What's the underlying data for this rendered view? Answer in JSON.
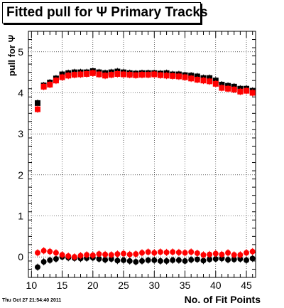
{
  "title": "Fitted pull for Ψ  Primary Tracks",
  "timestamp": "Thu Oct 27 21:54:40 2011",
  "chart_data": {
    "type": "scatter",
    "title": "Fitted pull for Ψ  Primary Tracks",
    "xlabel": "No. of Fit Points",
    "ylabel": "pull for Ψ",
    "xlim": [
      9.5,
      46.5
    ],
    "ylim": [
      -0.5,
      5.5
    ],
    "grid": true,
    "x_ticks": [
      10,
      15,
      20,
      25,
      30,
      35,
      40,
      45
    ],
    "y_ticks": [
      0,
      1,
      2,
      3,
      4,
      5
    ],
    "colors": {
      "black_series": "#000000",
      "red_series": "#ff0000"
    },
    "series": [
      {
        "marker": "square",
        "color": "#000000",
        "x": [
          11,
          12,
          13,
          14,
          15,
          16,
          17,
          18,
          19,
          20,
          21,
          22,
          23,
          24,
          25,
          26,
          27,
          28,
          29,
          30,
          31,
          32,
          33,
          34,
          35,
          36,
          37,
          38,
          39,
          40,
          41,
          42,
          43,
          44,
          45,
          46
        ],
        "y": [
          3.75,
          4.18,
          4.25,
          4.35,
          4.45,
          4.48,
          4.5,
          4.5,
          4.5,
          4.53,
          4.5,
          4.48,
          4.5,
          4.52,
          4.5,
          4.48,
          4.47,
          4.48,
          4.48,
          4.48,
          4.47,
          4.48,
          4.45,
          4.45,
          4.43,
          4.42,
          4.4,
          4.36,
          4.36,
          4.3,
          4.2,
          4.17,
          4.15,
          4.1,
          4.1,
          4.05
        ]
      },
      {
        "marker": "square",
        "color": "#ff0000",
        "x": [
          11,
          12,
          13,
          14,
          15,
          16,
          17,
          18,
          19,
          20,
          21,
          22,
          23,
          24,
          25,
          26,
          27,
          28,
          29,
          30,
          31,
          32,
          33,
          34,
          35,
          36,
          37,
          38,
          39,
          40,
          41,
          42,
          43,
          44,
          45,
          46
        ],
        "y": [
          3.6,
          4.15,
          4.2,
          4.3,
          4.38,
          4.42,
          4.44,
          4.45,
          4.46,
          4.48,
          4.45,
          4.42,
          4.44,
          4.46,
          4.45,
          4.44,
          4.43,
          4.44,
          4.44,
          4.45,
          4.43,
          4.42,
          4.41,
          4.4,
          4.38,
          4.35,
          4.32,
          4.3,
          4.28,
          4.22,
          4.12,
          4.1,
          4.08,
          4.03,
          4.05,
          4.0
        ]
      },
      {
        "marker": "circle",
        "color": "#000000",
        "x": [
          11,
          12,
          13,
          14,
          15,
          16,
          17,
          18,
          19,
          20,
          21,
          22,
          23,
          24,
          25,
          26,
          27,
          28,
          29,
          30,
          31,
          32,
          33,
          34,
          35,
          36,
          37,
          38,
          39,
          40,
          41,
          42,
          43,
          44,
          45,
          46
        ],
        "y": [
          -0.25,
          -0.12,
          -0.08,
          -0.05,
          0.0,
          -0.02,
          -0.03,
          -0.04,
          -0.03,
          -0.02,
          -0.05,
          -0.07,
          -0.05,
          -0.09,
          -0.08,
          -0.1,
          -0.12,
          -0.1,
          -0.08,
          -0.08,
          -0.1,
          -0.1,
          -0.08,
          -0.08,
          -0.1,
          -0.07,
          -0.06,
          -0.09,
          -0.06,
          -0.05,
          -0.04,
          -0.07,
          -0.06,
          -0.05,
          -0.08,
          -0.04
        ]
      },
      {
        "marker": "circle",
        "color": "#ff0000",
        "x": [
          11,
          12,
          13,
          14,
          15,
          16,
          17,
          18,
          19,
          20,
          21,
          22,
          23,
          24,
          25,
          26,
          27,
          28,
          29,
          30,
          31,
          32,
          33,
          34,
          35,
          36,
          37,
          38,
          39,
          40,
          41,
          42,
          43,
          44,
          45,
          46
        ],
        "y": [
          0.1,
          0.15,
          0.13,
          0.1,
          0.05,
          0.02,
          0.0,
          0.03,
          0.05,
          0.04,
          0.07,
          0.06,
          0.05,
          0.07,
          0.08,
          0.06,
          0.07,
          0.1,
          0.12,
          0.1,
          0.12,
          0.11,
          0.12,
          0.11,
          0.1,
          0.12,
          0.09,
          0.05,
          0.06,
          0.08,
          0.06,
          0.1,
          0.05,
          0.05,
          0.1,
          0.13
        ]
      }
    ]
  }
}
